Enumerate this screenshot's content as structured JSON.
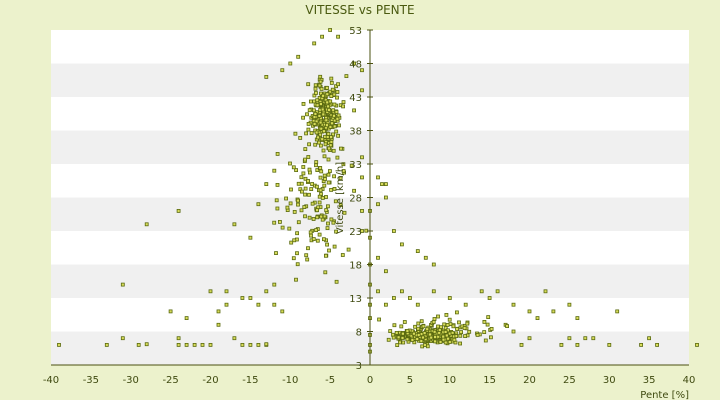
{
  "chart_data": {
    "type": "scatter",
    "title": "VITESSE vs PENTE",
    "xlabel": "Pente [%]",
    "ylabel": "Vitesse [km/h]",
    "xlim": [
      -40,
      40
    ],
    "ylim": [
      3,
      53
    ],
    "x_ticks": [
      "-40",
      "-35",
      "-30",
      "-25",
      "-20",
      "-15",
      "-10",
      "-5",
      "0",
      "5",
      "10",
      "15",
      "20",
      "25",
      "30",
      "35",
      "40"
    ],
    "y_ticks": [
      "3",
      "8",
      "13",
      "18",
      "23",
      "28",
      "33",
      "38",
      "43",
      "48",
      "53"
    ],
    "grid": "horizontal alternating bands",
    "legend": "none",
    "colors": {
      "page_background": "#ecf2cc",
      "band_white": "#ffffff",
      "band_gray": "#f0f0f0",
      "marker_fill": "#d8dc5a",
      "marker_stroke": "#5a6a10",
      "axis_line": "#4a5010"
    },
    "clusters": [
      {
        "description": "descent high-speed cloud",
        "x_center": -5.5,
        "x_spread": 2.2,
        "y_center": 40,
        "y_spread": 5,
        "count": 260
      },
      {
        "description": "descent wide spread",
        "x_center": -7,
        "x_spread": 4.5,
        "y_center": 27,
        "y_spread": 10,
        "count": 150
      },
      {
        "description": "climb low-speed dense band",
        "x_center": 7,
        "x_spread": 3.5,
        "y_center": 7.3,
        "y_spread": 0.8,
        "count": 330
      },
      {
        "description": "climb wider band",
        "x_center": 9,
        "x_spread": 6,
        "y_center": 8,
        "y_spread": 2,
        "count": 120
      }
    ],
    "points": [
      [
        -39,
        6
      ],
      [
        -33,
        6
      ],
      [
        -31,
        7
      ],
      [
        -29,
        6
      ],
      [
        -28,
        6.1
      ],
      [
        -24,
        6
      ],
      [
        -24,
        7
      ],
      [
        -23,
        6
      ],
      [
        -22,
        6
      ],
      [
        -21,
        6
      ],
      [
        -20,
        6
      ],
      [
        -19,
        9
      ],
      [
        -17,
        7
      ],
      [
        -16,
        6
      ],
      [
        -15,
        6
      ],
      [
        -14,
        6
      ],
      [
        -13,
        6
      ],
      [
        -13,
        6.1
      ],
      [
        -25,
        11
      ],
      [
        -23,
        10
      ],
      [
        -19,
        11
      ],
      [
        -18,
        12
      ],
      [
        -16,
        13
      ],
      [
        -14,
        12
      ],
      [
        -12,
        12
      ],
      [
        -11,
        11
      ],
      [
        -31,
        15
      ],
      [
        -20,
        14
      ],
      [
        -18,
        14
      ],
      [
        -15,
        13
      ],
      [
        -13,
        14
      ],
      [
        -12,
        15
      ],
      [
        -28,
        24
      ],
      [
        -24,
        26
      ],
      [
        -17,
        24
      ],
      [
        -15,
        22
      ],
      [
        -14,
        27
      ],
      [
        -13,
        30
      ],
      [
        -12,
        32
      ],
      [
        -13,
        46
      ],
      [
        -11,
        47
      ],
      [
        -10,
        48
      ],
      [
        -9,
        49
      ],
      [
        -7,
        51
      ],
      [
        -6,
        52
      ],
      [
        -5,
        53
      ],
      [
        -4,
        52
      ],
      [
        -2,
        48
      ],
      [
        -1,
        47
      ],
      [
        -1,
        44
      ],
      [
        -2,
        41
      ],
      [
        -1,
        34
      ],
      [
        -1,
        31
      ],
      [
        -2,
        29
      ],
      [
        -1,
        26
      ],
      [
        -1,
        23
      ],
      [
        0,
        26
      ],
      [
        0,
        22
      ],
      [
        0,
        18
      ],
      [
        0,
        15
      ],
      [
        0,
        12
      ],
      [
        0,
        10
      ],
      [
        0,
        7.5
      ],
      [
        0,
        6
      ],
      [
        0,
        5
      ],
      [
        1,
        31
      ],
      [
        1.5,
        30
      ],
      [
        2,
        30
      ],
      [
        2,
        28
      ],
      [
        1,
        27
      ],
      [
        3,
        23
      ],
      [
        4,
        21
      ],
      [
        6,
        20
      ],
      [
        7,
        19
      ],
      [
        8,
        18
      ],
      [
        1,
        19
      ],
      [
        2,
        17
      ],
      [
        1,
        14
      ],
      [
        2,
        12
      ],
      [
        3,
        13
      ],
      [
        4,
        14
      ],
      [
        5,
        13
      ],
      [
        6,
        12
      ],
      [
        8,
        14
      ],
      [
        10,
        13
      ],
      [
        12,
        12
      ],
      [
        14,
        14
      ],
      [
        15,
        13
      ],
      [
        16,
        14
      ],
      [
        18,
        12
      ],
      [
        20,
        11
      ],
      [
        22,
        14
      ],
      [
        21,
        10
      ],
      [
        23,
        11
      ],
      [
        25,
        12
      ],
      [
        26,
        10
      ],
      [
        28,
        7
      ],
      [
        30,
        6
      ],
      [
        31,
        11
      ],
      [
        34,
        6
      ],
      [
        35,
        7
      ],
      [
        36,
        6
      ],
      [
        41,
        6
      ],
      [
        24,
        6
      ],
      [
        25,
        7
      ],
      [
        26,
        6
      ],
      [
        27,
        7
      ],
      [
        19,
        6
      ],
      [
        20,
        7
      ],
      [
        18,
        8
      ],
      [
        17,
        9
      ]
    ]
  }
}
